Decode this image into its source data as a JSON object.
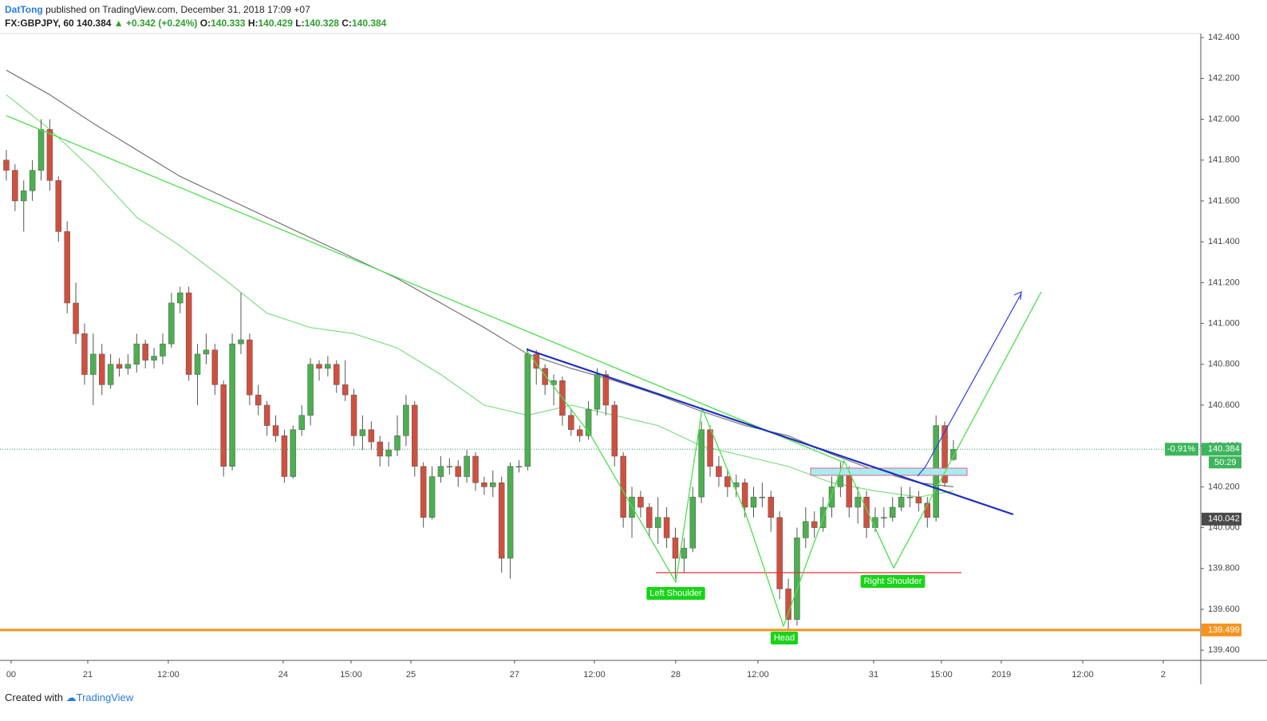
{
  "header": {
    "author": "DatTong",
    "published": "published on TradingView.com, December 31, 2018 17:09 +07"
  },
  "footer": {
    "created": "Created with",
    "brand": "TradingView"
  },
  "chart_data": {
    "type": "candlestick",
    "symbol": "FX:GBPJPY, 60",
    "last": 140.384,
    "change": "+0.342 (+0.24%)",
    "ohlc_labels": [
      "O:",
      "H:",
      "L:",
      "C:"
    ],
    "up_color": "#4caf50",
    "down_color": "#d0503f",
    "xlim": [
      -0.73,
      137.47
    ],
    "ylim": [
      139.35,
      142.42
    ],
    "xticks": [
      {
        "value": 0.55,
        "label": "00"
      },
      {
        "value": 9.37,
        "label": "21"
      },
      {
        "value": 18.64,
        "label": "12:00"
      },
      {
        "value": 31.86,
        "label": "24"
      },
      {
        "value": 39.67,
        "label": "15:00"
      },
      {
        "value": 46.56,
        "label": "25"
      },
      {
        "value": 58.49,
        "label": "27"
      },
      {
        "value": 67.68,
        "label": "12:00"
      },
      {
        "value": 77.04,
        "label": "28"
      },
      {
        "value": 86.5,
        "label": "12:00"
      },
      {
        "value": 99.82,
        "label": "31"
      },
      {
        "value": 107.62,
        "label": "15:00"
      },
      {
        "value": 114.51,
        "label": "2019"
      },
      {
        "value": 123.88,
        "label": "12:00"
      },
      {
        "value": 133.15,
        "label": "2"
      }
    ],
    "yticks": [
      {
        "value": 139.4,
        "label": "139.400"
      },
      {
        "value": 139.6,
        "label": "139.600"
      },
      {
        "value": 139.8,
        "label": "139.800"
      },
      {
        "value": 140.0,
        "label": "140.000"
      },
      {
        "value": 140.2,
        "label": "140.200"
      },
      {
        "value": 140.4,
        "label": "140.400"
      },
      {
        "value": 140.6,
        "label": "140.600"
      },
      {
        "value": 140.8,
        "label": "140.800"
      },
      {
        "value": 141.0,
        "label": "141.000"
      },
      {
        "value": 141.2,
        "label": "141.200"
      },
      {
        "value": 141.4,
        "label": "141.400"
      },
      {
        "value": 141.6,
        "label": "141.600"
      },
      {
        "value": 141.8,
        "label": "141.800"
      },
      {
        "value": 142.0,
        "label": "142.000"
      },
      {
        "value": 142.2,
        "label": "142.200"
      },
      {
        "value": 142.4,
        "label": "142.400"
      }
    ],
    "ohlc": [
      [
        141.8,
        141.85,
        141.7,
        141.75
      ],
      [
        141.75,
        141.78,
        141.55,
        141.6
      ],
      [
        141.6,
        141.7,
        141.45,
        141.65
      ],
      [
        141.65,
        141.8,
        141.6,
        141.75
      ],
      [
        141.75,
        142.0,
        141.7,
        141.95
      ],
      [
        141.95,
        142.0,
        141.65,
        141.7
      ],
      [
        141.7,
        141.72,
        141.4,
        141.45
      ],
      [
        141.45,
        141.5,
        141.05,
        141.1
      ],
      [
        141.1,
        141.2,
        140.9,
        140.95
      ],
      [
        140.95,
        141.0,
        140.7,
        140.75
      ],
      [
        140.75,
        140.95,
        140.6,
        140.85
      ],
      [
        140.85,
        140.9,
        140.65,
        140.7
      ],
      [
        140.7,
        140.85,
        140.68,
        140.8
      ],
      [
        140.8,
        140.83,
        140.74,
        140.78
      ],
      [
        140.78,
        140.85,
        140.75,
        140.8
      ],
      [
        140.8,
        140.95,
        140.76,
        140.9
      ],
      [
        140.9,
        140.92,
        140.78,
        140.82
      ],
      [
        140.82,
        140.88,
        140.78,
        140.84
      ],
      [
        140.84,
        140.95,
        140.8,
        140.9
      ],
      [
        140.9,
        141.15,
        140.88,
        141.1
      ],
      [
        141.1,
        141.18,
        141.05,
        141.15
      ],
      [
        141.15,
        141.18,
        140.72,
        140.75
      ],
      [
        140.75,
        140.9,
        140.6,
        140.85
      ],
      [
        140.85,
        140.95,
        140.8,
        140.87
      ],
      [
        140.87,
        140.9,
        140.65,
        140.7
      ],
      [
        140.7,
        140.72,
        140.25,
        140.3
      ],
      [
        140.3,
        140.95,
        140.28,
        140.9
      ],
      [
        140.9,
        141.15,
        140.85,
        140.92
      ],
      [
        140.92,
        140.95,
        140.6,
        140.65
      ],
      [
        140.65,
        140.7,
        140.55,
        140.6
      ],
      [
        140.6,
        140.62,
        140.45,
        140.5
      ],
      [
        140.5,
        140.55,
        140.42,
        140.45
      ],
      [
        140.45,
        140.48,
        140.22,
        140.25
      ],
      [
        140.25,
        140.5,
        140.24,
        140.48
      ],
      [
        140.48,
        140.6,
        140.45,
        140.55
      ],
      [
        140.55,
        140.83,
        140.5,
        140.8
      ],
      [
        140.8,
        140.82,
        140.72,
        140.78
      ],
      [
        140.78,
        140.84,
        140.74,
        140.8
      ],
      [
        140.8,
        140.82,
        140.66,
        140.7
      ],
      [
        140.7,
        140.82,
        140.62,
        140.65
      ],
      [
        140.65,
        140.68,
        140.4,
        140.45
      ],
      [
        140.45,
        140.55,
        140.38,
        140.48
      ],
      [
        140.48,
        140.52,
        140.38,
        140.42
      ],
      [
        140.42,
        140.45,
        140.3,
        140.35
      ],
      [
        140.35,
        140.42,
        140.3,
        140.38
      ],
      [
        140.38,
        140.55,
        140.35,
        140.45
      ],
      [
        140.45,
        140.65,
        140.4,
        140.6
      ],
      [
        140.6,
        140.62,
        140.25,
        140.3
      ],
      [
        140.3,
        140.32,
        140.0,
        140.05
      ],
      [
        140.05,
        140.3,
        140.04,
        140.25
      ],
      [
        140.25,
        140.35,
        140.22,
        140.3
      ],
      [
        140.3,
        140.34,
        140.26,
        140.3
      ],
      [
        140.3,
        140.33,
        140.2,
        140.25
      ],
      [
        140.25,
        140.38,
        140.22,
        140.35
      ],
      [
        140.35,
        140.37,
        140.18,
        140.22
      ],
      [
        140.22,
        140.25,
        140.16,
        140.2
      ],
      [
        140.2,
        140.28,
        140.15,
        140.22
      ],
      [
        140.22,
        140.25,
        139.78,
        139.85
      ],
      [
        139.85,
        140.32,
        139.75,
        140.3
      ],
      [
        140.3,
        140.33,
        140.27,
        140.3
      ],
      [
        140.3,
        140.88,
        140.28,
        140.85
      ],
      [
        140.85,
        140.87,
        140.7,
        140.78
      ],
      [
        140.78,
        140.8,
        140.65,
        140.7
      ],
      [
        140.7,
        140.75,
        140.6,
        140.72
      ],
      [
        140.72,
        140.74,
        140.5,
        140.55
      ],
      [
        140.55,
        140.58,
        140.45,
        140.48
      ],
      [
        140.48,
        140.5,
        140.42,
        140.45
      ],
      [
        140.45,
        140.62,
        140.43,
        140.58
      ],
      [
        140.58,
        140.78,
        140.55,
        140.75
      ],
      [
        140.75,
        140.77,
        140.55,
        140.6
      ],
      [
        140.6,
        140.62,
        140.3,
        140.35
      ],
      [
        140.35,
        140.37,
        140.0,
        140.05
      ],
      [
        140.05,
        140.2,
        139.95,
        140.15
      ],
      [
        140.15,
        140.18,
        140.05,
        140.1
      ],
      [
        140.1,
        140.12,
        139.95,
        140.0
      ],
      [
        140.0,
        140.15,
        139.92,
        140.05
      ],
      [
        140.05,
        140.1,
        139.9,
        139.95
      ],
      [
        139.95,
        140.0,
        139.75,
        139.85
      ],
      [
        139.85,
        139.95,
        139.78,
        139.9
      ],
      [
        139.9,
        140.2,
        139.88,
        140.15
      ],
      [
        140.15,
        140.52,
        140.12,
        140.48
      ],
      [
        140.48,
        140.5,
        140.25,
        140.3
      ],
      [
        140.3,
        140.35,
        140.2,
        140.25
      ],
      [
        140.25,
        140.28,
        140.15,
        140.2
      ],
      [
        140.2,
        140.26,
        140.15,
        140.22
      ],
      [
        140.22,
        140.24,
        140.05,
        140.1
      ],
      [
        140.1,
        140.2,
        140.05,
        140.15
      ],
      [
        140.15,
        140.22,
        140.1,
        140.15
      ],
      [
        140.15,
        140.18,
        139.98,
        140.05
      ],
      [
        140.05,
        140.08,
        139.65,
        139.7
      ],
      [
        139.7,
        139.75,
        139.5,
        139.55
      ],
      [
        139.55,
        140.0,
        139.52,
        139.95
      ],
      [
        139.95,
        140.1,
        139.9,
        140.03
      ],
      [
        140.03,
        140.08,
        139.95,
        140.0
      ],
      [
        140.0,
        140.15,
        139.98,
        140.1
      ],
      [
        140.1,
        140.25,
        140.05,
        140.2
      ],
      [
        140.2,
        140.32,
        140.15,
        140.28
      ],
      [
        140.28,
        140.3,
        140.05,
        140.1
      ],
      [
        140.1,
        140.2,
        140.02,
        140.15
      ],
      [
        140.15,
        140.18,
        139.95,
        140.0
      ],
      [
        140.0,
        140.1,
        139.98,
        140.05
      ],
      [
        140.05,
        140.1,
        140.0,
        140.05
      ],
      [
        140.05,
        140.15,
        140.03,
        140.1
      ],
      [
        140.1,
        140.2,
        140.08,
        140.15
      ],
      [
        140.15,
        140.2,
        140.1,
        140.15
      ],
      [
        140.15,
        140.18,
        140.08,
        140.12
      ],
      [
        140.12,
        140.15,
        140.0,
        140.05
      ],
      [
        140.05,
        140.55,
        140.03,
        140.5
      ],
      [
        140.5,
        140.52,
        140.2,
        140.22
      ],
      [
        140.333,
        140.429,
        140.328,
        140.384
      ]
    ],
    "lines": [
      {
        "color": "#777777",
        "x": [
          0,
          5,
          10,
          15,
          20,
          25,
          30,
          35,
          40,
          45,
          50,
          55,
          60,
          65,
          70,
          75,
          80,
          85,
          90,
          95,
          100,
          105,
          109
        ],
        "values": [
          142.24,
          142.12,
          141.98,
          141.85,
          141.72,
          141.62,
          141.52,
          141.42,
          141.32,
          141.22,
          141.1,
          140.98,
          140.85,
          140.78,
          140.72,
          140.65,
          140.57,
          140.5,
          140.45,
          140.36,
          140.28,
          140.22,
          140.2
        ]
      },
      {
        "color": "#7ee07e",
        "x": [
          0,
          5,
          10,
          15,
          20,
          25,
          30,
          35,
          40,
          45,
          50,
          55,
          60,
          65,
          70,
          75,
          80,
          85,
          90,
          95,
          100,
          105,
          109
        ],
        "values": [
          142.12,
          141.95,
          141.75,
          141.52,
          141.38,
          141.22,
          141.05,
          140.98,
          140.95,
          140.88,
          140.75,
          140.6,
          140.55,
          140.6,
          140.55,
          140.5,
          140.4,
          140.35,
          140.3,
          140.22,
          140.18,
          140.15,
          140.18
        ]
      }
    ],
    "level": {
      "value": 139.499,
      "color": "#f7931e"
    },
    "marker": {
      "value": 140.042,
      "color": "#4a4a4a"
    },
    "change_pct": "-0.91%",
    "countdown": "50:29",
    "annotations": [
      "Left Shoulder",
      "Head",
      "Right Shoulder"
    ]
  }
}
